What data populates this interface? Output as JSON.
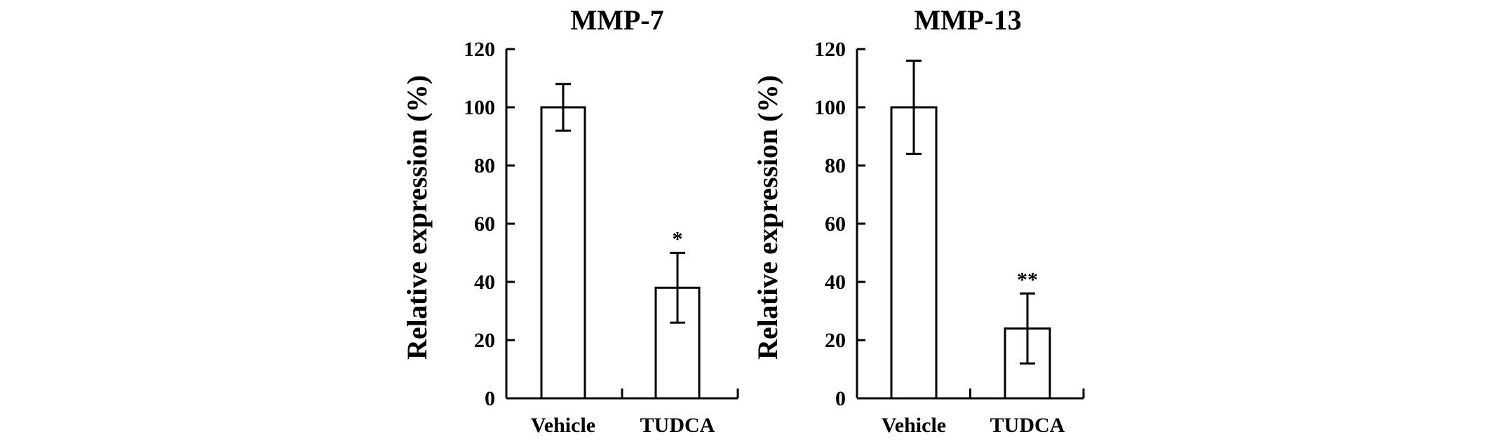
{
  "chart_data": [
    {
      "type": "bar",
      "title": "MMP-7",
      "xlabel": "",
      "ylabel": "Relative expression (%)",
      "ylim": [
        0,
        120
      ],
      "yticks": [
        "0",
        "20",
        "40",
        "60",
        "80",
        "100",
        "120"
      ],
      "categories": [
        "Vehicle",
        "TUDCA"
      ],
      "values": [
        100,
        38
      ],
      "error": [
        8,
        12
      ],
      "annotations": [
        "",
        "*"
      ],
      "grid": false,
      "legend": "none"
    },
    {
      "type": "bar",
      "title": "MMP-13",
      "xlabel": "",
      "ylabel": "Relative expression (%)",
      "ylim": [
        0,
        120
      ],
      "yticks": [
        "0",
        "20",
        "40",
        "60",
        "80",
        "100",
        "120"
      ],
      "categories": [
        "Vehicle",
        "TUDCA"
      ],
      "values": [
        100,
        24
      ],
      "error": [
        16,
        12
      ],
      "annotations": [
        "",
        "**"
      ],
      "grid": false,
      "legend": "none"
    }
  ]
}
